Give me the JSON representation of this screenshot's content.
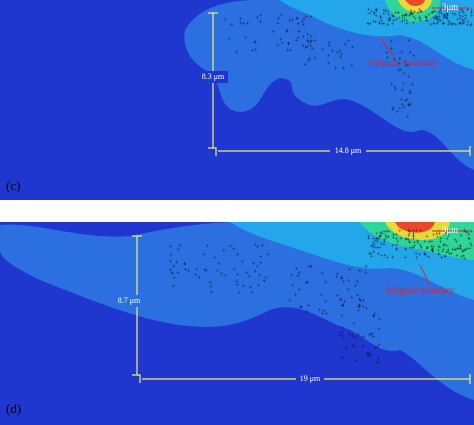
{
  "panels": [
    {
      "label": "(c)",
      "height_label": "8.3 μm",
      "width_label": "14.8 μm",
      "scale_label": "3μm",
      "annotation": "Subgrain boundary"
    },
    {
      "label": "(d)",
      "height_label": "8.7 μm",
      "width_label": "19 μm",
      "scale_label": "3μm",
      "annotation": "Subgrain boundary"
    }
  ]
}
